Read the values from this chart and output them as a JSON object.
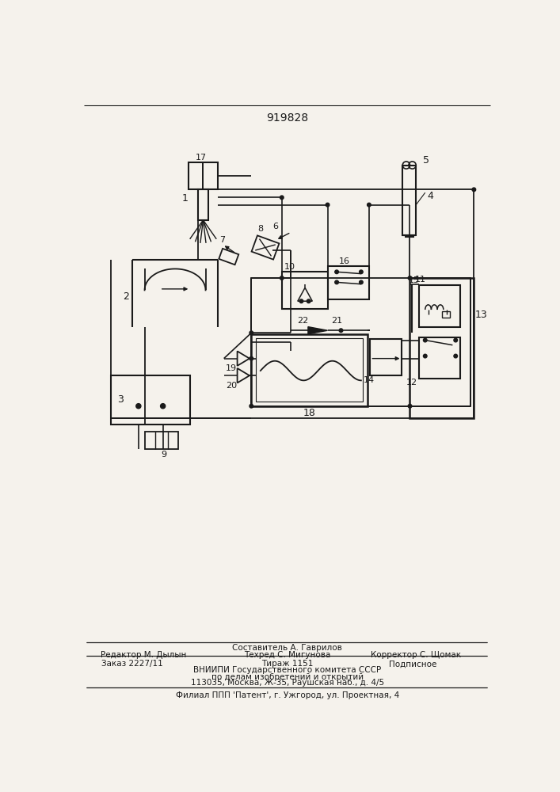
{
  "patent_number": "919828",
  "bg_color": "#f5f2ec",
  "line_color": "#1a1a1a",
  "footer": {
    "sestavitel": "Составитель А. Гаврилов",
    "redaktor": "Редактор М. Дылын",
    "tehred": "Техред С. Мигунова",
    "korrektor": "Корректор С. Щомак",
    "zakaz": "Заказ 2227/11",
    "tirazh": "Тираж 1151",
    "podpisnoe": "Подписное",
    "vniipи": "ВНИИПИ Государственного комитета СССР",
    "po_delam": "по делам изобретений и открытий",
    "address": "113035, Москва, Ж-35, Раушская наб., д. 4/5",
    "filial": "Филиал ППП 'Патент', г. Ужгород, ул. Проектная, 4"
  }
}
